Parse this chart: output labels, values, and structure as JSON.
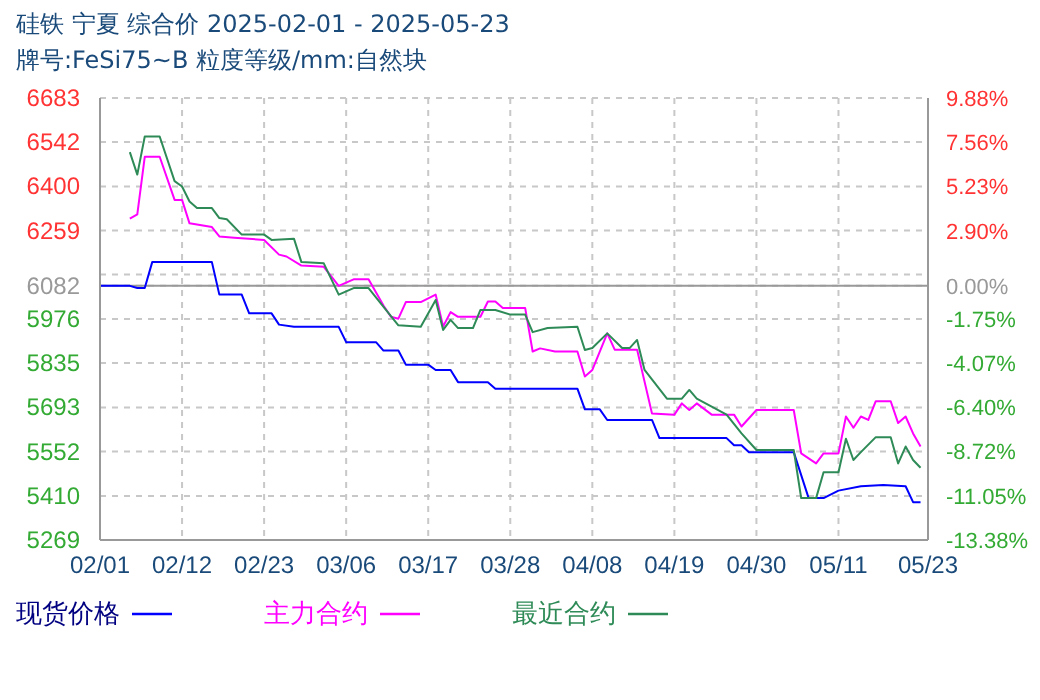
{
  "chart_data": {
    "type": "line",
    "title": "硅铁 宁夏 综合价 2025-02-01 - 2025-05-23",
    "subtitle": "牌号:FeSi75~B 粒度等级/mm:自然块",
    "xlim": [
      "2025-02-01",
      "2025-05-23"
    ],
    "xticks": [
      {
        "value": "2025-02-01",
        "label": "02/01"
      },
      {
        "value": "2025-02-12",
        "label": "02/12"
      },
      {
        "value": "2025-02-23",
        "label": "02/23"
      },
      {
        "value": "2025-03-06",
        "label": "03/06"
      },
      {
        "value": "2025-03-17",
        "label": "03/17"
      },
      {
        "value": "2025-03-28",
        "label": "03/28"
      },
      {
        "value": "2025-04-08",
        "label": "04/08"
      },
      {
        "value": "2025-04-19",
        "label": "04/19"
      },
      {
        "value": "2025-04-30",
        "label": "04/30"
      },
      {
        "value": "2025-05-11",
        "label": "05/11"
      },
      {
        "value": "2025-05-23",
        "label": "05/23"
      }
    ],
    "ylim": [
      5269,
      6683
    ],
    "yticks": [
      5269,
      5410,
      5552,
      5693,
      5835,
      5976,
      6082,
      {
        "value": 6118,
        "label": null
      },
      6259,
      6400,
      6542,
      6683
    ],
    "y2lim": [
      -13.38,
      9.88
    ],
    "y2ticks": [
      {
        "value": -13.38,
        "label": "-13.38%"
      },
      {
        "value": -11.05,
        "label": "-11.05%"
      },
      {
        "value": -8.72,
        "label": "-8.72%"
      },
      {
        "value": -6.4,
        "label": "-6.40%"
      },
      {
        "value": -4.07,
        "label": "-4.07%"
      },
      {
        "value": -1.75,
        "label": "-1.75%"
      },
      {
        "value": 0,
        "label": "0.00%"
      },
      {
        "value": 2.9,
        "label": "2.90%"
      },
      {
        "value": 5.23,
        "label": "5.23%"
      },
      {
        "value": 7.56,
        "label": "7.56%"
      },
      {
        "value": 9.88,
        "label": "9.88%"
      }
    ],
    "ref_lines": [
      {
        "axis": "y",
        "value": 6082,
        "color": "#999999"
      }
    ],
    "grid": true,
    "legend": "bottom",
    "line_style": "solid",
    "series": [
      {
        "name": "现货价格",
        "color": "#0000ff",
        "x": [
          "2025-02-01",
          "2025-02-05",
          "2025-02-06",
          "2025-02-07",
          "2025-02-08",
          "2025-02-16",
          "2025-02-17",
          "2025-02-20",
          "2025-02-21",
          "2025-02-24",
          "2025-02-25",
          "2025-02-27",
          "2025-03-05",
          "2025-03-06",
          "2025-03-10",
          "2025-03-11",
          "2025-03-13",
          "2025-03-14",
          "2025-03-17",
          "2025-03-18",
          "2025-03-20",
          "2025-03-21",
          "2025-03-25",
          "2025-03-26",
          "2025-04-06",
          "2025-04-07",
          "2025-04-09",
          "2025-04-10",
          "2025-04-16",
          "2025-04-17",
          "2025-04-26",
          "2025-04-27",
          "2025-04-28",
          "2025-04-29",
          "2025-05-05",
          "2025-05-07",
          "2025-05-09",
          "2025-05-11",
          "2025-05-14",
          "2025-05-17",
          "2025-05-20",
          "2025-05-21",
          "2025-05-22"
        ],
        "values": [
          6082,
          6082,
          6075,
          6075,
          6158,
          6158,
          6054,
          6054,
          5994,
          5994,
          5958,
          5951,
          5951,
          5902,
          5902,
          5875,
          5875,
          5830,
          5830,
          5813,
          5813,
          5774,
          5774,
          5753,
          5753,
          5687,
          5687,
          5653,
          5653,
          5595,
          5595,
          5572,
          5572,
          5550,
          5550,
          5403,
          5403,
          5427,
          5441,
          5445,
          5441,
          5390,
          5390
        ]
      },
      {
        "name": "主力合约",
        "color": "#ff00ff",
        "x": [
          "2025-02-05",
          "2025-02-06",
          "2025-02-07",
          "2025-02-09",
          "2025-02-11",
          "2025-02-12",
          "2025-02-13",
          "2025-02-16",
          "2025-02-17",
          "2025-02-19",
          "2025-02-23",
          "2025-02-25",
          "2025-02-26",
          "2025-02-28",
          "2025-03-03",
          "2025-03-05",
          "2025-03-07",
          "2025-03-09",
          "2025-03-11",
          "2025-03-12",
          "2025-03-13",
          "2025-03-14",
          "2025-03-16",
          "2025-03-18",
          "2025-03-19",
          "2025-03-20",
          "2025-03-21",
          "2025-03-24",
          "2025-03-25",
          "2025-03-26",
          "2025-03-27",
          "2025-03-30",
          "2025-03-31",
          "2025-04-01",
          "2025-04-03",
          "2025-04-06",
          "2025-04-07",
          "2025-04-08",
          "2025-04-10",
          "2025-04-11",
          "2025-04-14",
          "2025-04-16",
          "2025-04-19",
          "2025-04-20",
          "2025-04-21",
          "2025-04-22",
          "2025-04-24",
          "2025-04-27",
          "2025-04-28",
          "2025-04-30",
          "2025-05-05",
          "2025-05-06",
          "2025-05-08",
          "2025-05-09",
          "2025-05-11",
          "2025-05-12",
          "2025-05-13",
          "2025-05-14",
          "2025-05-15",
          "2025-05-16",
          "2025-05-18",
          "2025-05-19",
          "2025-05-20",
          "2025-05-21",
          "2025-05-22"
        ],
        "values": [
          6297,
          6311,
          6495,
          6495,
          6357,
          6357,
          6282,
          6270,
          6240,
          6236,
          6229,
          6182,
          6176,
          6147,
          6143,
          6082,
          6103,
          6103,
          6019,
          5983,
          5977,
          6030,
          6030,
          6054,
          5952,
          5998,
          5983,
          5983,
          6032,
          6032,
          6011,
          6011,
          5872,
          5882,
          5872,
          5872,
          5792,
          5813,
          5930,
          5878,
          5878,
          5674,
          5670,
          5706,
          5685,
          5706,
          5670,
          5670,
          5632,
          5685,
          5685,
          5546,
          5514,
          5546,
          5546,
          5664,
          5628,
          5664,
          5653,
          5713,
          5713,
          5643,
          5664,
          5610,
          5568
        ]
      },
      {
        "name": "最近合约",
        "color": "#2e8b57",
        "x": [
          "2025-02-05",
          "2025-02-06",
          "2025-02-07",
          "2025-02-09",
          "2025-02-11",
          "2025-02-12",
          "2025-02-13",
          "2025-02-14",
          "2025-02-16",
          "2025-02-17",
          "2025-02-18",
          "2025-02-20",
          "2025-02-23",
          "2025-02-24",
          "2025-02-27",
          "2025-02-28",
          "2025-03-03",
          "2025-03-05",
          "2025-03-07",
          "2025-03-09",
          "2025-03-13",
          "2025-03-16",
          "2025-03-18",
          "2025-03-19",
          "2025-03-20",
          "2025-03-21",
          "2025-03-23",
          "2025-03-24",
          "2025-03-26",
          "2025-03-28",
          "2025-03-30",
          "2025-03-31",
          "2025-04-02",
          "2025-04-06",
          "2025-04-07",
          "2025-04-08",
          "2025-04-10",
          "2025-04-12",
          "2025-04-13",
          "2025-04-14",
          "2025-04-15",
          "2025-04-18",
          "2025-04-20",
          "2025-04-21",
          "2025-04-22",
          "2025-04-24",
          "2025-04-26",
          "2025-04-28",
          "2025-04-30",
          "2025-05-05",
          "2025-05-06",
          "2025-05-08",
          "2025-05-09",
          "2025-05-11",
          "2025-05-12",
          "2025-05-13",
          "2025-05-14",
          "2025-05-16",
          "2025-05-18",
          "2025-05-19",
          "2025-05-20",
          "2025-05-21",
          "2025-05-22"
        ],
        "values": [
          6510,
          6438,
          6560,
          6560,
          6417,
          6400,
          6352,
          6331,
          6331,
          6299,
          6295,
          6246,
          6246,
          6229,
          6233,
          6158,
          6154,
          6054,
          6075,
          6075,
          5956,
          5951,
          6037,
          5941,
          5973,
          5947,
          5947,
          6005,
          6005,
          5990,
          5990,
          5934,
          5947,
          5951,
          5877,
          5883,
          5930,
          5883,
          5883,
          5909,
          5813,
          5721,
          5721,
          5749,
          5721,
          5696,
          5670,
          5610,
          5557,
          5557,
          5403,
          5403,
          5486,
          5486,
          5593,
          5525,
          5550,
          5598,
          5598,
          5514,
          5568,
          5525,
          5500
        ]
      }
    ]
  }
}
